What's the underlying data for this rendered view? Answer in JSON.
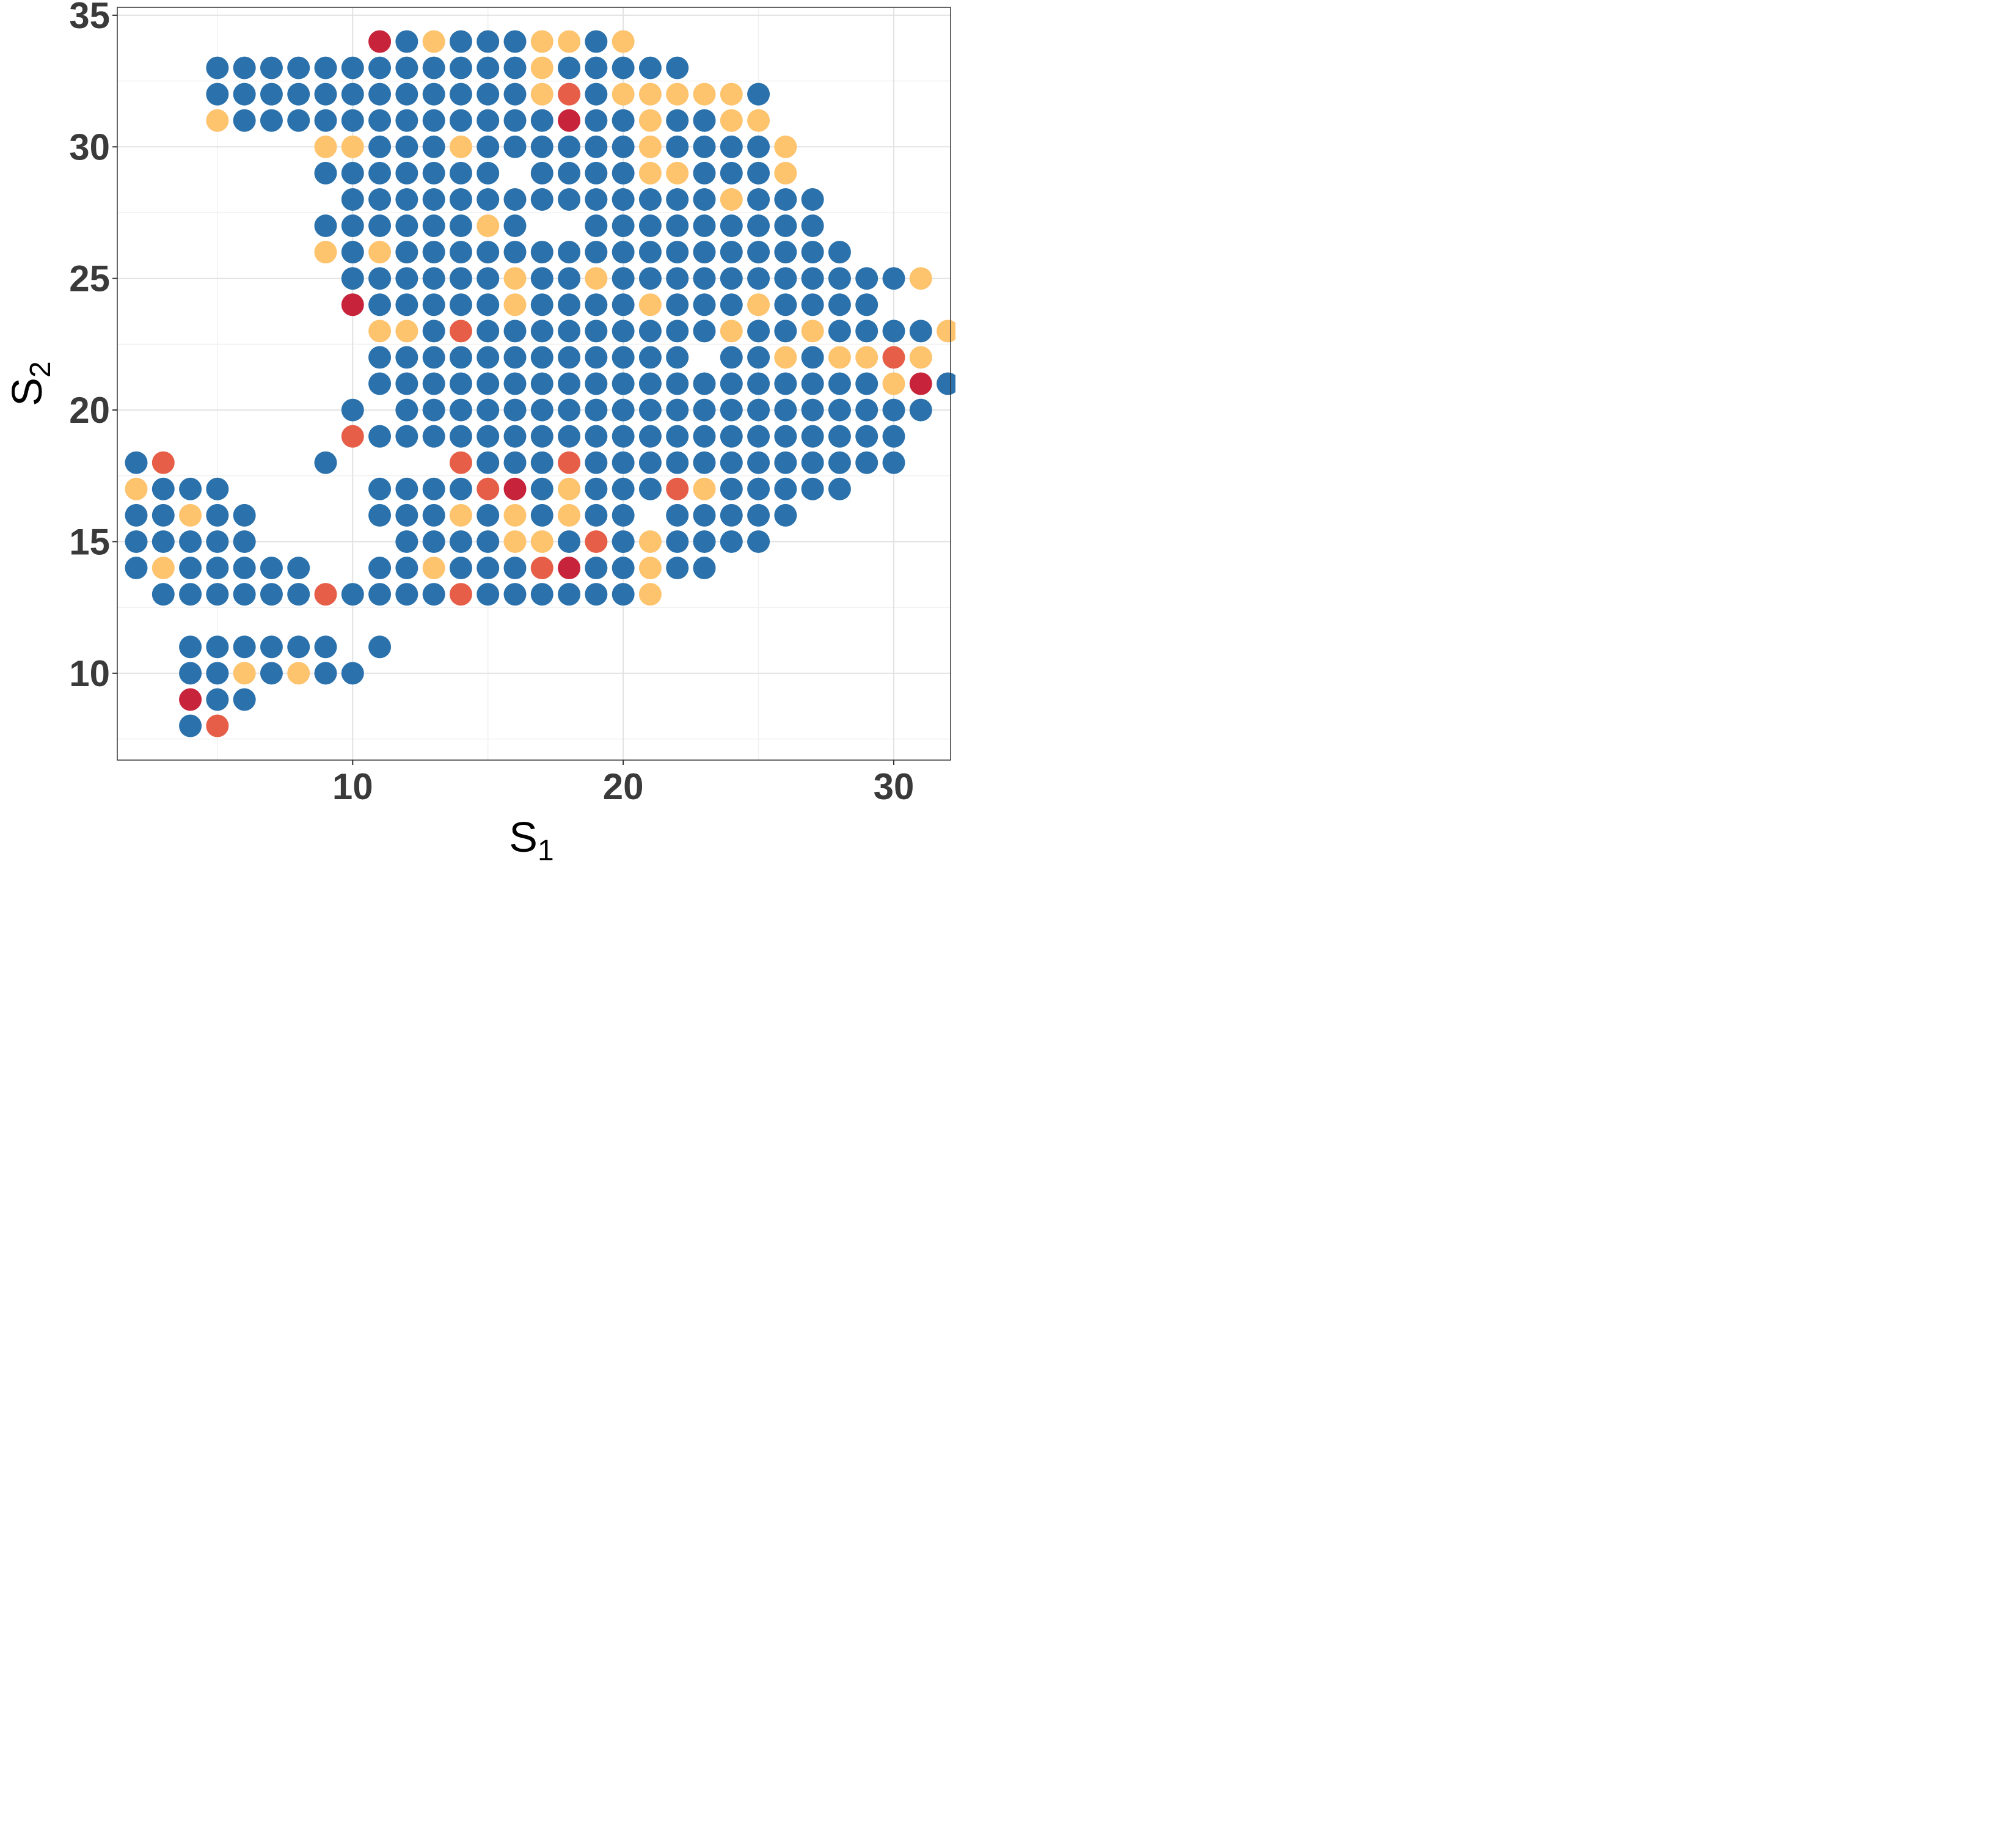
{
  "chart_data": {
    "type": "scatter",
    "xlabel": "S",
    "xlabel_subscript": "1",
    "ylabel": "S",
    "ylabel_subscript": "2",
    "xlim": [
      1.3,
      32.1
    ],
    "ylim": [
      6.7,
      35.3
    ],
    "xticks": [
      10,
      20,
      30
    ],
    "yticks": [
      10,
      15,
      20,
      25,
      30,
      35
    ],
    "grid": true,
    "legend": "none",
    "colors": {
      "blue": "#2b72ad",
      "light_orange": "#fdc36d",
      "orange_red": "#e65e47",
      "red": "#c7243b"
    },
    "rows": [
      {
        "y": 34,
        "x_start": 11,
        "codes": "RBLBBBLLBL"
      },
      {
        "y": 33,
        "x_start": 5,
        "codes": "BBBBBBBBBBBBLBBBBB"
      },
      {
        "y": 32,
        "x_start": 5,
        "codes": "BBBBBBBBBBBBLOBLLLLLB"
      },
      {
        "y": 31,
        "x_start": 5,
        "codes": "LBBBBBBBBBBBBRBBLBBLL"
      },
      {
        "y": 30,
        "x_start": 9,
        "codes": "LLBBBLBBBBBBLBBBBL"
      },
      {
        "y": 29,
        "x_start": 9,
        "codes": "BBBBBBB_BBBBLLBBBL"
      },
      {
        "y": 28,
        "x_start": 10,
        "codes": "BBBBBBBBBBBBBBLBBB"
      },
      {
        "y": 27,
        "x_start": 9,
        "codes": "BBBBBBLB__BBBBBBBBB"
      },
      {
        "y": 26,
        "x_start": 9,
        "codes": "LBLBBBBBBBBBBBBBBBBB"
      },
      {
        "y": 25,
        "x_start": 10,
        "codes": "BBBBBBLBBLBBBBBBBBBBBL"
      },
      {
        "y": 24,
        "x_start": 10,
        "codes": "RBBBBBLBBBBLBBBLBBBB"
      },
      {
        "y": 23,
        "x_start": 11,
        "codes": "LLBOBBBBBBBBBLBBLBBBBL"
      },
      {
        "y": 22,
        "x_start": 11,
        "codes": "BBBBBBBBBBBB_BBLBLLOL"
      },
      {
        "y": 21,
        "x_start": 11,
        "codes": "BBBBBBBBBBBBBBBBBBBLRB"
      },
      {
        "y": 20,
        "x_start": 10,
        "codes": "B_BBBBBBBBBBBBBBBBBBBB"
      },
      {
        "y": 19,
        "x_start": 10,
        "codes": "OBBBBBBBBBBBBBBBBBBBB"
      },
      {
        "y": 18,
        "x_start": 2,
        "codes": "BO_____B____OBBBOBBBBBBBBBBBB"
      },
      {
        "y": 17,
        "x_start": 2,
        "codes": "LBBB_____BBBBORBLBBBOLBBBBB"
      },
      {
        "y": 16,
        "x_start": 2,
        "codes": "BBLBB____BBBLBLBLBB_BBBBB"
      },
      {
        "y": 15,
        "x_start": 2,
        "codes": "BBBBB_____BBBBLLBOBLBBBB"
      },
      {
        "y": 14,
        "x_start": 2,
        "codes": "BLBBBBB__BBLBBBORBBLBB"
      },
      {
        "y": 13,
        "x_start": 3,
        "codes": "BBBBBBOBBBBOBBBBBBL"
      },
      {
        "y": 11,
        "x_start": 4,
        "codes": "BBBBBB_B"
      },
      {
        "y": 10,
        "x_start": 4,
        "codes": "BBLBLBB"
      },
      {
        "y": 9,
        "x_start": 4,
        "codes": "RBB"
      },
      {
        "y": 8,
        "x_start": 4,
        "codes": "BO"
      }
    ]
  }
}
